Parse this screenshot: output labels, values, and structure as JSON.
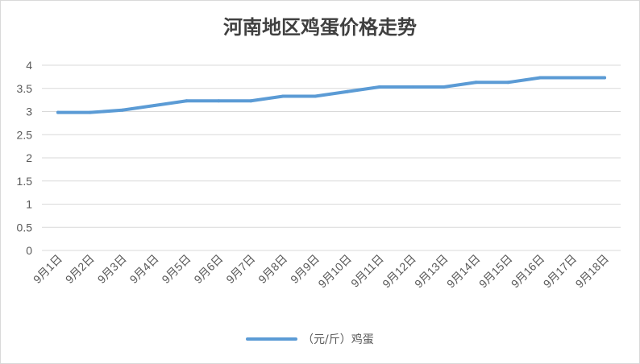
{
  "chart_data": {
    "type": "line",
    "title": "河南地区鸡蛋价格走势",
    "categories": [
      "9月1日",
      "9月2日",
      "9月3日",
      "9月4日",
      "9月5日",
      "9月6日",
      "9月7日",
      "9月8日",
      "9月9日",
      "9月10日",
      "9月11日",
      "9月12日",
      "9月13日",
      "9月14日",
      "9月15日",
      "9月16日",
      "9月17日",
      "9月18日"
    ],
    "series": [
      {
        "name": "（元/斤）鸡蛋",
        "values": [
          2.98,
          2.98,
          3.03,
          3.13,
          3.23,
          3.23,
          3.23,
          3.33,
          3.33,
          3.43,
          3.53,
          3.53,
          3.53,
          3.63,
          3.63,
          3.73,
          3.73,
          3.73
        ],
        "color": "#5b9bd5"
      }
    ],
    "ylim": [
      0,
      4
    ],
    "yticks": [
      "0",
      "0.5",
      "1",
      "1.5",
      "2",
      "2.5",
      "3",
      "3.5",
      "4"
    ],
    "grid": true,
    "legend": "bottom",
    "gridColor": "#d9d9d9"
  }
}
